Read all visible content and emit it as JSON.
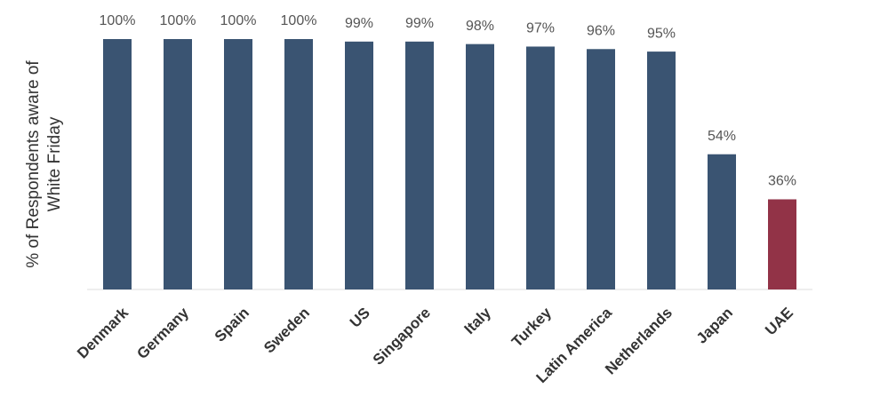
{
  "chart_data": {
    "type": "bar",
    "ylabel": "% of Respondents aware of White Friday",
    "categories": [
      "Denmark",
      "Germany",
      "Spain",
      "Sweden",
      "US",
      "Singapore",
      "Italy",
      "Turkey",
      "Latin America",
      "Netherlands",
      "Japan",
      "UAE"
    ],
    "values": [
      100,
      100,
      100,
      100,
      99,
      99,
      98,
      97,
      96,
      95,
      54,
      36
    ],
    "value_labels": [
      "100%",
      "100%",
      "100%",
      "100%",
      "99%",
      "99%",
      "98%",
      "97%",
      "96%",
      "95%",
      "54%",
      "36%"
    ],
    "colors": [
      "#3a5472",
      "#3a5472",
      "#3a5472",
      "#3a5472",
      "#3a5472",
      "#3a5472",
      "#3a5472",
      "#3a5472",
      "#3a5472",
      "#3a5472",
      "#3a5472",
      "#923347"
    ],
    "ylim": [
      0,
      100
    ]
  }
}
